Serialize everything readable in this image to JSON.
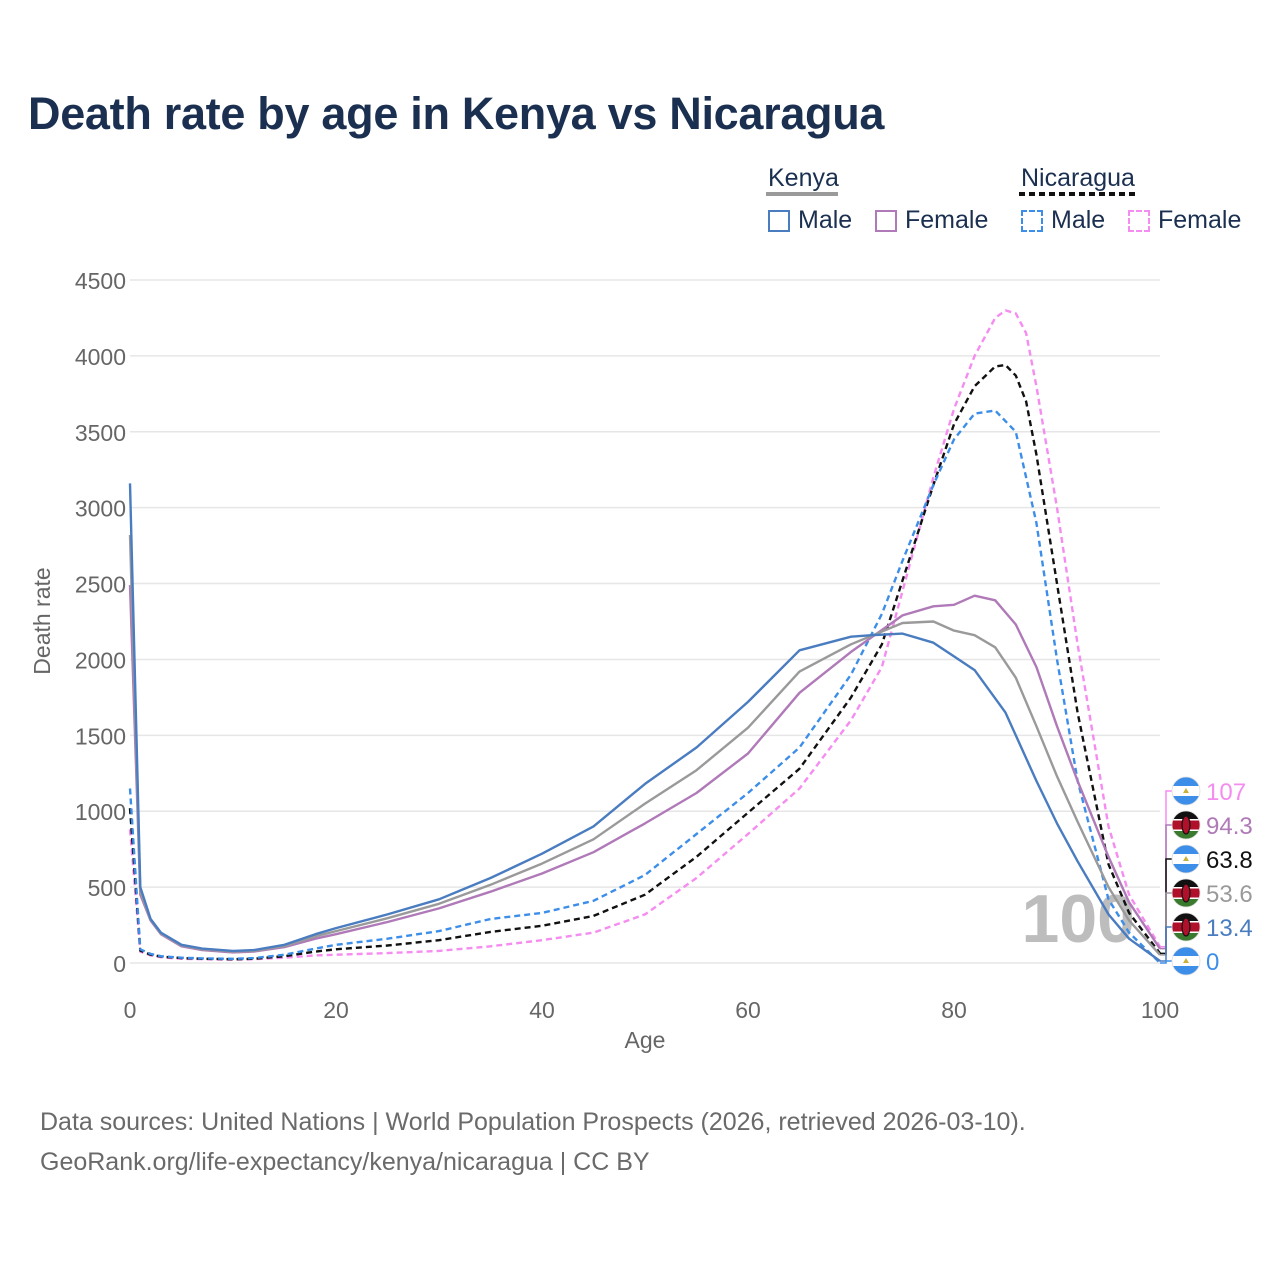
{
  "title": "Death rate by age in Kenya vs Nicaragua",
  "legend": {
    "groups": [
      {
        "country": "Kenya",
        "line_style": "solid",
        "line_color": "#9a9a9a",
        "items": [
          {
            "label": "Male",
            "color": "#4a7cc0"
          },
          {
            "label": "Female",
            "color": "#b07ab8"
          }
        ]
      },
      {
        "country": "Nicaragua",
        "line_style": "dashed",
        "line_color": "#111111",
        "items": [
          {
            "label": "Male",
            "color": "#3d8ee8"
          },
          {
            "label": "Female",
            "color": "#f58cf0"
          }
        ]
      }
    ]
  },
  "chart_data": {
    "type": "line",
    "title": "Death rate by age in Kenya vs Nicaragua",
    "xlabel": "Age",
    "ylabel": "Death rate",
    "xlim": [
      0,
      100
    ],
    "ylim": [
      0,
      4500
    ],
    "xticks": [
      0,
      20,
      40,
      60,
      80,
      100
    ],
    "yticks": [
      0,
      500,
      1000,
      1500,
      2000,
      2500,
      3000,
      3500,
      4000,
      4500
    ],
    "grid": true,
    "current_age_label": "100",
    "series": [
      {
        "name": "Kenya Male",
        "country": "Kenya",
        "sex": "Male",
        "style": "solid",
        "color": "#4a7cc0",
        "points": [
          [
            0,
            3160
          ],
          [
            1,
            500
          ],
          [
            2,
            290
          ],
          [
            3,
            200
          ],
          [
            5,
            120
          ],
          [
            7,
            95
          ],
          [
            10,
            80
          ],
          [
            12,
            85
          ],
          [
            15,
            120
          ],
          [
            18,
            190
          ],
          [
            20,
            230
          ],
          [
            25,
            320
          ],
          [
            30,
            420
          ],
          [
            35,
            560
          ],
          [
            40,
            720
          ],
          [
            45,
            900
          ],
          [
            50,
            1180
          ],
          [
            55,
            1420
          ],
          [
            60,
            1720
          ],
          [
            65,
            2060
          ],
          [
            70,
            2150
          ],
          [
            72,
            2160
          ],
          [
            75,
            2170
          ],
          [
            78,
            2110
          ],
          [
            80,
            2020
          ],
          [
            82,
            1930
          ],
          [
            85,
            1650
          ],
          [
            88,
            1200
          ],
          [
            90,
            920
          ],
          [
            92,
            670
          ],
          [
            95,
            320
          ],
          [
            97,
            160
          ],
          [
            100,
            13.4
          ]
        ],
        "end_value": "13.4",
        "end_flag": "kenya"
      },
      {
        "name": "Kenya Female",
        "country": "Kenya",
        "sex": "Female",
        "style": "solid",
        "color": "#b07ab8",
        "points": [
          [
            0,
            2490
          ],
          [
            1,
            450
          ],
          [
            2,
            280
          ],
          [
            3,
            190
          ],
          [
            5,
            110
          ],
          [
            7,
            85
          ],
          [
            10,
            70
          ],
          [
            12,
            75
          ],
          [
            15,
            105
          ],
          [
            18,
            160
          ],
          [
            20,
            190
          ],
          [
            25,
            270
          ],
          [
            30,
            360
          ],
          [
            35,
            470
          ],
          [
            40,
            590
          ],
          [
            45,
            730
          ],
          [
            50,
            920
          ],
          [
            55,
            1120
          ],
          [
            60,
            1380
          ],
          [
            65,
            1780
          ],
          [
            70,
            2050
          ],
          [
            75,
            2290
          ],
          [
            78,
            2350
          ],
          [
            80,
            2360
          ],
          [
            82,
            2420
          ],
          [
            84,
            2390
          ],
          [
            86,
            2230
          ],
          [
            88,
            1950
          ],
          [
            90,
            1560
          ],
          [
            92,
            1200
          ],
          [
            95,
            700
          ],
          [
            97,
            400
          ],
          [
            100,
            94.3
          ]
        ],
        "end_value": "94.3",
        "end_flag": "kenya"
      },
      {
        "name": "Kenya Total",
        "country": "Kenya",
        "sex": "Total",
        "style": "solid",
        "color": "#9a9a9a",
        "points": [
          [
            0,
            2820
          ],
          [
            1,
            470
          ],
          [
            2,
            285
          ],
          [
            3,
            195
          ],
          [
            5,
            115
          ],
          [
            7,
            90
          ],
          [
            10,
            75
          ],
          [
            12,
            80
          ],
          [
            15,
            112
          ],
          [
            18,
            175
          ],
          [
            20,
            210
          ],
          [
            25,
            295
          ],
          [
            30,
            390
          ],
          [
            35,
            515
          ],
          [
            40,
            655
          ],
          [
            45,
            815
          ],
          [
            50,
            1050
          ],
          [
            55,
            1270
          ],
          [
            60,
            1550
          ],
          [
            65,
            1920
          ],
          [
            70,
            2100
          ],
          [
            75,
            2240
          ],
          [
            78,
            2250
          ],
          [
            80,
            2190
          ],
          [
            82,
            2160
          ],
          [
            84,
            2080
          ],
          [
            86,
            1880
          ],
          [
            88,
            1560
          ],
          [
            90,
            1230
          ],
          [
            92,
            930
          ],
          [
            95,
            500
          ],
          [
            97,
            280
          ],
          [
            100,
            53.6
          ]
        ],
        "end_value": "53.6",
        "end_flag": "kenya"
      },
      {
        "name": "Nicaragua Male",
        "country": "Nicaragua",
        "sex": "Male",
        "style": "dashed",
        "color": "#3d8ee8",
        "points": [
          [
            0,
            1150
          ],
          [
            1,
            90
          ],
          [
            2,
            60
          ],
          [
            3,
            45
          ],
          [
            5,
            35
          ],
          [
            7,
            30
          ],
          [
            10,
            28
          ],
          [
            12,
            32
          ],
          [
            15,
            55
          ],
          [
            18,
            95
          ],
          [
            20,
            120
          ],
          [
            25,
            160
          ],
          [
            30,
            210
          ],
          [
            35,
            290
          ],
          [
            40,
            330
          ],
          [
            45,
            410
          ],
          [
            50,
            580
          ],
          [
            55,
            850
          ],
          [
            60,
            1120
          ],
          [
            65,
            1420
          ],
          [
            70,
            1900
          ],
          [
            73,
            2300
          ],
          [
            75,
            2650
          ],
          [
            78,
            3150
          ],
          [
            80,
            3450
          ],
          [
            82,
            3620
          ],
          [
            84,
            3640
          ],
          [
            86,
            3500
          ],
          [
            88,
            2900
          ],
          [
            90,
            2000
          ],
          [
            92,
            1200
          ],
          [
            95,
            420
          ],
          [
            97,
            200
          ],
          [
            100,
            0
          ]
        ],
        "end_value": "0",
        "end_flag": "nicaragua"
      },
      {
        "name": "Nicaragua Female",
        "country": "Nicaragua",
        "sex": "Female",
        "style": "dashed",
        "color": "#f58cf0",
        "points": [
          [
            0,
            880
          ],
          [
            1,
            75
          ],
          [
            2,
            50
          ],
          [
            3,
            38
          ],
          [
            5,
            28
          ],
          [
            7,
            25
          ],
          [
            10,
            22
          ],
          [
            12,
            25
          ],
          [
            15,
            35
          ],
          [
            18,
            50
          ],
          [
            20,
            55
          ],
          [
            25,
            65
          ],
          [
            30,
            80
          ],
          [
            35,
            110
          ],
          [
            40,
            150
          ],
          [
            45,
            200
          ],
          [
            50,
            320
          ],
          [
            55,
            560
          ],
          [
            60,
            850
          ],
          [
            65,
            1150
          ],
          [
            70,
            1600
          ],
          [
            73,
            1950
          ],
          [
            75,
            2450
          ],
          [
            78,
            3200
          ],
          [
            80,
            3650
          ],
          [
            82,
            4000
          ],
          [
            84,
            4250
          ],
          [
            85,
            4300
          ],
          [
            86,
            4280
          ],
          [
            87,
            4150
          ],
          [
            88,
            3800
          ],
          [
            90,
            3000
          ],
          [
            92,
            2100
          ],
          [
            95,
            900
          ],
          [
            97,
            450
          ],
          [
            100,
            107
          ]
        ],
        "end_value": "107",
        "end_flag": "nicaragua"
      },
      {
        "name": "Nicaragua Total",
        "country": "Nicaragua",
        "sex": "Total",
        "style": "dashed",
        "color": "#111111",
        "points": [
          [
            0,
            1020
          ],
          [
            1,
            82
          ],
          [
            2,
            55
          ],
          [
            3,
            42
          ],
          [
            5,
            32
          ],
          [
            7,
            28
          ],
          [
            10,
            25
          ],
          [
            12,
            28
          ],
          [
            15,
            45
          ],
          [
            18,
            75
          ],
          [
            20,
            90
          ],
          [
            25,
            115
          ],
          [
            30,
            150
          ],
          [
            35,
            205
          ],
          [
            40,
            245
          ],
          [
            45,
            310
          ],
          [
            50,
            450
          ],
          [
            55,
            700
          ],
          [
            60,
            990
          ],
          [
            65,
            1280
          ],
          [
            70,
            1750
          ],
          [
            73,
            2100
          ],
          [
            75,
            2520
          ],
          [
            78,
            3150
          ],
          [
            80,
            3550
          ],
          [
            82,
            3800
          ],
          [
            84,
            3930
          ],
          [
            85,
            3940
          ],
          [
            86,
            3870
          ],
          [
            87,
            3700
          ],
          [
            88,
            3350
          ],
          [
            90,
            2500
          ],
          [
            92,
            1650
          ],
          [
            95,
            650
          ],
          [
            97,
            330
          ],
          [
            100,
            63.8
          ]
        ],
        "end_value": "63.8",
        "end_flag": "nicaragua"
      }
    ]
  },
  "footer": {
    "sources": "Data sources: United Nations | World Population Prospects (2026, retrieved 2026-03-10).",
    "link": "GeoRank.org/life-expectancy/kenya/nicaragua | CC BY"
  }
}
